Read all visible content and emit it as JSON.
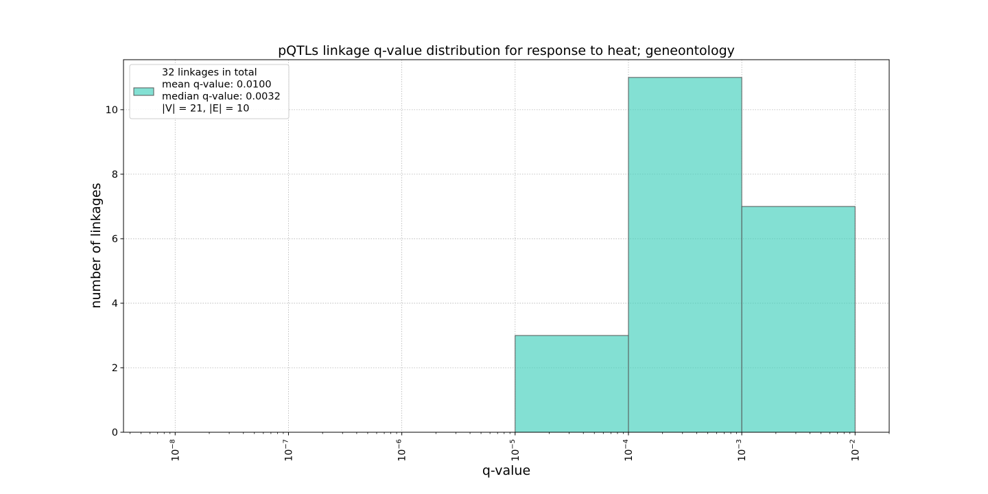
{
  "chart_data": {
    "type": "bar",
    "title": "pQTLs linkage q-value distribution for response to heat; geneontology",
    "xlabel": "q-value",
    "ylabel": "number of linkages",
    "x_scale": "log",
    "xlim": [
      3.5e-09,
      0.02
    ],
    "ylim": [
      0,
      11.55
    ],
    "grid": true,
    "bar_color": "#40d0bc",
    "bar_edge_color": "#555555",
    "bins": [
      {
        "x_start": 1e-05,
        "x_end": 0.0001,
        "count": 3
      },
      {
        "x_start": 0.0001,
        "x_end": 0.001,
        "count": 11
      },
      {
        "x_start": 0.001,
        "x_end": 0.01,
        "count": 7
      }
    ],
    "x_ticks": [
      {
        "value": 1e-08,
        "base": "10",
        "exp": "−8"
      },
      {
        "value": 1e-07,
        "base": "10",
        "exp": "−7"
      },
      {
        "value": 1e-06,
        "base": "10",
        "exp": "−6"
      },
      {
        "value": 1e-05,
        "base": "10",
        "exp": "−5"
      },
      {
        "value": 0.0001,
        "base": "10",
        "exp": "−4"
      },
      {
        "value": 0.001,
        "base": "10",
        "exp": "−3"
      },
      {
        "value": 0.01,
        "base": "10",
        "exp": "−2"
      }
    ],
    "y_ticks": [
      {
        "value": 0,
        "label": "0"
      },
      {
        "value": 2,
        "label": "2"
      },
      {
        "value": 4,
        "label": "4"
      },
      {
        "value": 6,
        "label": "6"
      },
      {
        "value": 8,
        "label": "8"
      },
      {
        "value": 10,
        "label": "10"
      }
    ],
    "legend": {
      "placement": "upper-left",
      "lines": [
        "32 linkages in total",
        "mean q-value: 0.0100",
        "median q-value: 0.0032",
        "|V| = 21, |E| = 10"
      ]
    }
  }
}
